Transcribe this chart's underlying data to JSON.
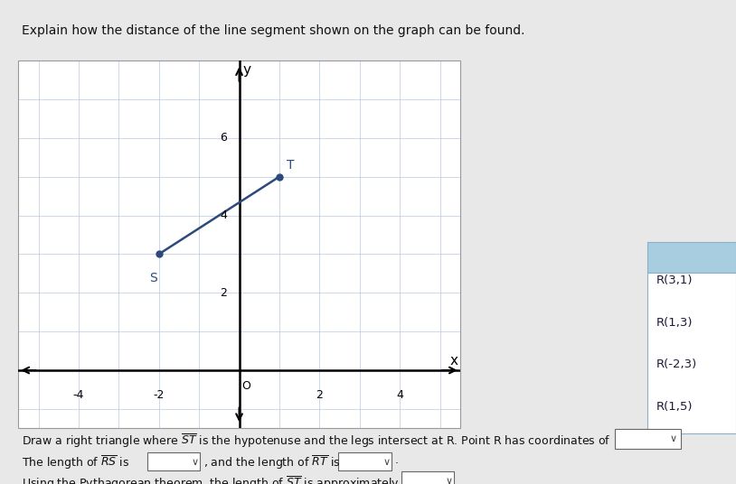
{
  "title": "Explain how the distance of the line segment shown on the graph can be found.",
  "S": [
    -2,
    3
  ],
  "T": [
    1,
    5
  ],
  "xlim": [
    -5.5,
    5.5
  ],
  "ylim": [
    -1.5,
    8.0
  ],
  "xticks": [
    -4,
    -2,
    0,
    2,
    4
  ],
  "yticks": [
    2,
    4,
    6
  ],
  "grid_color": "#b8c9de",
  "bg_color": "#ffffff",
  "page_bg": "#e8e8e8",
  "line_color": "#2c4a7c",
  "point_color": "#2c4a7c",
  "axis_color": "#000000",
  "dropdown_header_color": "#a8cce0",
  "dropdown_options": [
    "R(3,1)",
    "R(1,3)",
    "R(-2,3)",
    "R(1,5)"
  ]
}
